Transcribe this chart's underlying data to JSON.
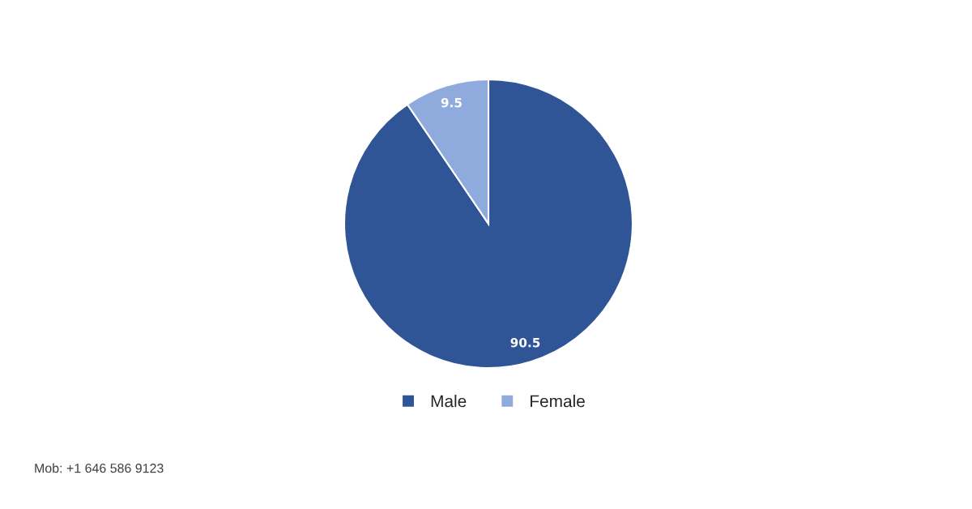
{
  "chart_data": {
    "type": "pie",
    "categories": [
      "Male",
      "Female"
    ],
    "values": [
      90.5,
      9.5
    ],
    "colors": [
      "#2f5597",
      "#8faadc"
    ],
    "data_labels": true,
    "legend": "bottom",
    "annotations": [
      "Mob: +1 646 586 9123"
    ]
  }
}
